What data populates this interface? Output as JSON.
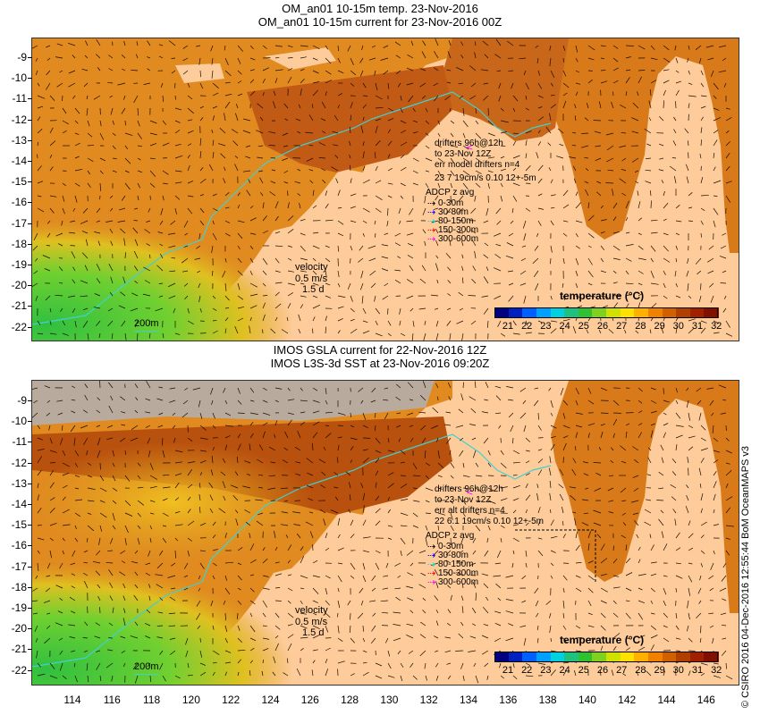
{
  "panels": [
    {
      "title_line1": "OM_an01 10-15m temp. 23-Nov-2016",
      "title_line2": "OM_an01 10-15m current for 23-Nov-2016 00Z",
      "drifters_line1": "drifters 96h@12h",
      "drifters_line2": "to 23-Nov 12Z",
      "drifters_line3": "err model drifters n=4",
      "drifters_line4": "23 7 19cm/s 0.10 12+-5m",
      "velocity_label": "velocity",
      "velocity_scale": "0.5 m/s",
      "velocity_time": "1.5 d",
      "depth_contour": "200m"
    },
    {
      "title_line1": "IMOS GSLA current for 22-Nov-2016 12Z",
      "title_line2": "IMOS L3S-3d SST at 23-Nov-2016 09:20Z",
      "drifters_line1": "drifters 96h@12h",
      "drifters_line2": "to 23-Nov 12Z",
      "drifters_line3": "err alt drifters n=4",
      "drifters_line4": "22 6.1 19cm/s 0.10 12+-5m",
      "velocity_label": "velocity",
      "velocity_scale": "0.5 m/s",
      "velocity_time": "1.5 d",
      "depth_contour": "200m"
    }
  ],
  "adcp": {
    "title": "ADCP z avg",
    "bands": [
      {
        "label": "0-30m",
        "color": "#000000"
      },
      {
        "label": "30-80m",
        "color": "#0000ff"
      },
      {
        "label": "80-150m",
        "color": "#00e0e0"
      },
      {
        "label": "150-300m",
        "color": "#ff0000"
      },
      {
        "label": "300-600m",
        "color": "#ff00ff"
      }
    ]
  },
  "colorbar": {
    "title": "temperature (°C)",
    "labels": [
      "21",
      "22",
      "23",
      "24",
      "25",
      "26",
      "27",
      "28",
      "29",
      "30",
      "31",
      "32"
    ],
    "colors": [
      "#000080",
      "#0020c0",
      "#0060ff",
      "#00a0ff",
      "#00d0e0",
      "#20c080",
      "#30c030",
      "#80d020",
      "#d0e000",
      "#ffe000",
      "#ffb000",
      "#f08000",
      "#d06000",
      "#b04000",
      "#a02000",
      "#801000"
    ]
  },
  "axes": {
    "y_labels": [
      "-9",
      "-10",
      "-11",
      "-12",
      "-13",
      "-14",
      "-15",
      "-16",
      "-17",
      "-18",
      "-19",
      "-20",
      "-21",
      "-22"
    ],
    "x_labels": [
      "114",
      "116",
      "118",
      "120",
      "122",
      "124",
      "126",
      "128",
      "130",
      "132",
      "134",
      "136",
      "138",
      "140",
      "142",
      "144",
      "146"
    ]
  },
  "credit": "© CSIRO 2016  04-Dec-2016 12:55:44 BoM OceanMAPS v3",
  "colors": {
    "land": "#fdcc9a",
    "ocean_warm": "#d9751c",
    "ocean_hot": "#b8540e",
    "ocean_mid": "#f0a020",
    "ocean_cool": "#40c840",
    "coast": "#40d0d0",
    "missing": "#b8ab9e"
  }
}
